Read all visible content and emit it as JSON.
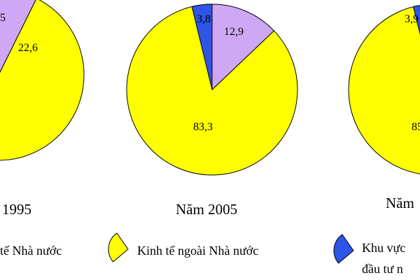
{
  "colors": {
    "state": "#CFA8F5",
    "non_state": "#FFFF00",
    "fdi": "#2E55E8",
    "outline": "#000000"
  },
  "chart_data": [
    {
      "type": "pie",
      "caption": "1995",
      "slices": [
        {
          "key": "state",
          "value": 22.6,
          "label": "22,6"
        },
        {
          "key": "non_state",
          "value": null,
          "label": ""
        },
        {
          "key": "fdi",
          "value": null,
          "label": ",5"
        }
      ]
    },
    {
      "type": "pie",
      "caption": "Năm 2005",
      "slices": [
        {
          "key": "state",
          "value": 12.9,
          "label": "12,9"
        },
        {
          "key": "non_state",
          "value": 83.3,
          "label": "83,3"
        },
        {
          "key": "fdi",
          "value": 3.8,
          "label": "3,8"
        }
      ]
    },
    {
      "type": "pie",
      "caption": "Năm",
      "slices": [
        {
          "key": "state",
          "value": null,
          "label": ""
        },
        {
          "key": "non_state",
          "value": null,
          "label": "85"
        },
        {
          "key": "fdi",
          "value": 3.9,
          "label": "3,9"
        }
      ]
    }
  ],
  "legend": [
    {
      "key": "state",
      "text": "tế Nhà nước"
    },
    {
      "key": "non_state",
      "text": "Kinh tế ngoài Nhà nước"
    },
    {
      "key": "fdi",
      "text": "Khu vực",
      "text2": "đầu tư n"
    }
  ]
}
